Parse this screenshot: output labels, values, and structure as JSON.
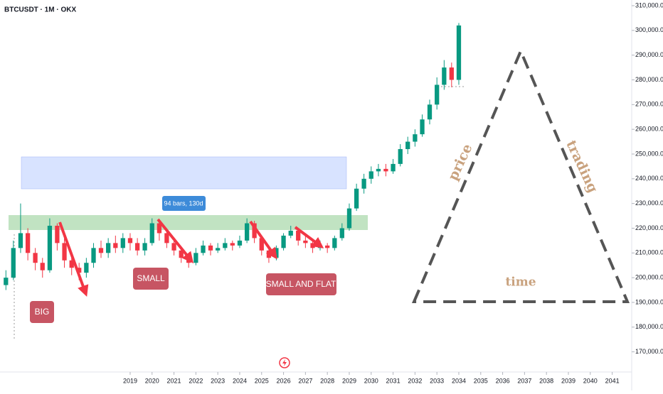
{
  "chart_data": {
    "type": "candlestick",
    "title": "BTCUSDT · 1M · OKX",
    "x": [
      2013.33,
      2013.67,
      2014.0,
      2014.33,
      2014.67,
      2015.0,
      2015.33,
      2015.67,
      2016.0,
      2016.33,
      2016.67,
      2017.0,
      2017.33,
      2017.67,
      2018.0,
      2018.33,
      2018.67,
      2019.0,
      2019.33,
      2019.67,
      2020.0,
      2020.33,
      2020.67,
      2021.0,
      2021.33,
      2021.67,
      2022.0,
      2022.33,
      2022.67,
      2023.0,
      2023.33,
      2023.67,
      2024.0,
      2024.33,
      2024.67,
      2025.0,
      2025.33,
      2025.67,
      2026.0,
      2026.33,
      2026.67,
      2027.0,
      2027.33,
      2027.67,
      2028.0,
      2028.33,
      2028.67,
      2029.0,
      2029.33,
      2029.67,
      2030.0,
      2030.33,
      2030.67,
      2031.0,
      2031.33,
      2031.67,
      2032.0,
      2032.33,
      2032.67,
      2033.0,
      2033.33,
      2033.67,
      2034.0
    ],
    "open": [
      197000,
      200000,
      212000,
      218000,
      210000,
      206000,
      203000,
      221000,
      214000,
      207000,
      204000,
      202000,
      206000,
      212000,
      210000,
      214000,
      212000,
      216000,
      214000,
      211000,
      214000,
      222000,
      218000,
      214000,
      211000,
      208000,
      206000,
      210000,
      213000,
      211000,
      212000,
      214000,
      213000,
      215000,
      222000,
      216000,
      211000,
      208000,
      212000,
      217000,
      219000,
      215000,
      214000,
      212000,
      213000,
      212000,
      216000,
      220000,
      228000,
      236000,
      240000,
      243000,
      244000,
      243000,
      246000,
      252000,
      255000,
      258000,
      264000,
      270000,
      278000,
      285000,
      280000
    ],
    "high": [
      203000,
      215000,
      230000,
      220000,
      212000,
      208000,
      224000,
      222000,
      216000,
      209000,
      206000,
      208000,
      214000,
      215000,
      216000,
      217000,
      218000,
      218000,
      216000,
      216000,
      224000,
      223000,
      219000,
      215000,
      212000,
      209000,
      212000,
      215000,
      214000,
      214000,
      216000,
      215000,
      217000,
      224000,
      223000,
      217000,
      212000,
      213000,
      218000,
      221000,
      220000,
      217000,
      215000,
      215000,
      214000,
      217000,
      222000,
      230000,
      238000,
      242000,
      245000,
      246000,
      246000,
      248000,
      254000,
      257000,
      260000,
      266000,
      272000,
      281000,
      288000,
      287000,
      303000
    ],
    "low": [
      195000,
      199000,
      210000,
      207000,
      203000,
      200000,
      202000,
      211000,
      204000,
      201000,
      199000,
      200000,
      204000,
      208000,
      208000,
      210000,
      210000,
      211000,
      209000,
      209000,
      213000,
      215000,
      212000,
      209000,
      206000,
      204000,
      205000,
      209000,
      209000,
      210000,
      211000,
      211000,
      212000,
      214000,
      214000,
      209000,
      206000,
      207000,
      211000,
      216000,
      213000,
      212000,
      210000,
      211000,
      210000,
      211000,
      215000,
      219000,
      227000,
      234000,
      238000,
      241000,
      241000,
      242000,
      245000,
      250000,
      253000,
      257000,
      262000,
      268000,
      276000,
      277000,
      278000
    ],
    "close": [
      200000,
      212000,
      218000,
      210000,
      206000,
      203000,
      221000,
      214000,
      207000,
      204000,
      202000,
      206000,
      212000,
      210000,
      214000,
      212000,
      216000,
      214000,
      211000,
      214000,
      222000,
      218000,
      214000,
      211000,
      208000,
      206000,
      210000,
      213000,
      211000,
      212000,
      214000,
      213000,
      215000,
      222000,
      216000,
      211000,
      208000,
      212000,
      217000,
      219000,
      215000,
      214000,
      212000,
      213000,
      212000,
      216000,
      220000,
      228000,
      236000,
      240000,
      243000,
      244000,
      243000,
      246000,
      252000,
      255000,
      258000,
      264000,
      270000,
      278000,
      285000,
      280000,
      302000
    ],
    "up_color": "#089981",
    "down_color": "#f23645",
    "xlim": [
      2013.06,
      2041.89
    ],
    "xticks": [
      2019,
      2020,
      2021,
      2022,
      2023,
      2024,
      2025,
      2026,
      2027,
      2028,
      2029,
      2030,
      2031,
      2032,
      2033,
      2034,
      2035,
      2036,
      2037,
      2038,
      2039,
      2040,
      2041
    ],
    "ylim": [
      163000,
      312300
    ],
    "yticks": [
      {
        "value": 170000,
        "label": "170,000.0"
      },
      {
        "value": 180000,
        "label": "180,000.0"
      },
      {
        "value": 190000,
        "label": "190,000.0"
      },
      {
        "value": 200000,
        "label": "200,000.0"
      },
      {
        "value": 210000,
        "label": "210,000.0"
      },
      {
        "value": 220000,
        "label": "220,000.0"
      },
      {
        "value": 230000,
        "label": "230,000.0"
      },
      {
        "value": 240000,
        "label": "240,000.0"
      },
      {
        "value": 250000,
        "label": "250,000.0"
      },
      {
        "value": 260000,
        "label": "260,000.0"
      },
      {
        "value": 270000,
        "label": "270,000.0"
      },
      {
        "value": 280000,
        "label": "280,000.0"
      },
      {
        "value": 290000,
        "label": "290,000.0"
      },
      {
        "value": 300000,
        "label": "300,000.0"
      },
      {
        "value": 310000,
        "label": "310,000.0"
      }
    ],
    "annotations": [
      "BIG",
      "SMALL",
      "SMALL AND FLAT",
      "94 bars, 130d",
      "price",
      "trading",
      "time"
    ]
  }
}
